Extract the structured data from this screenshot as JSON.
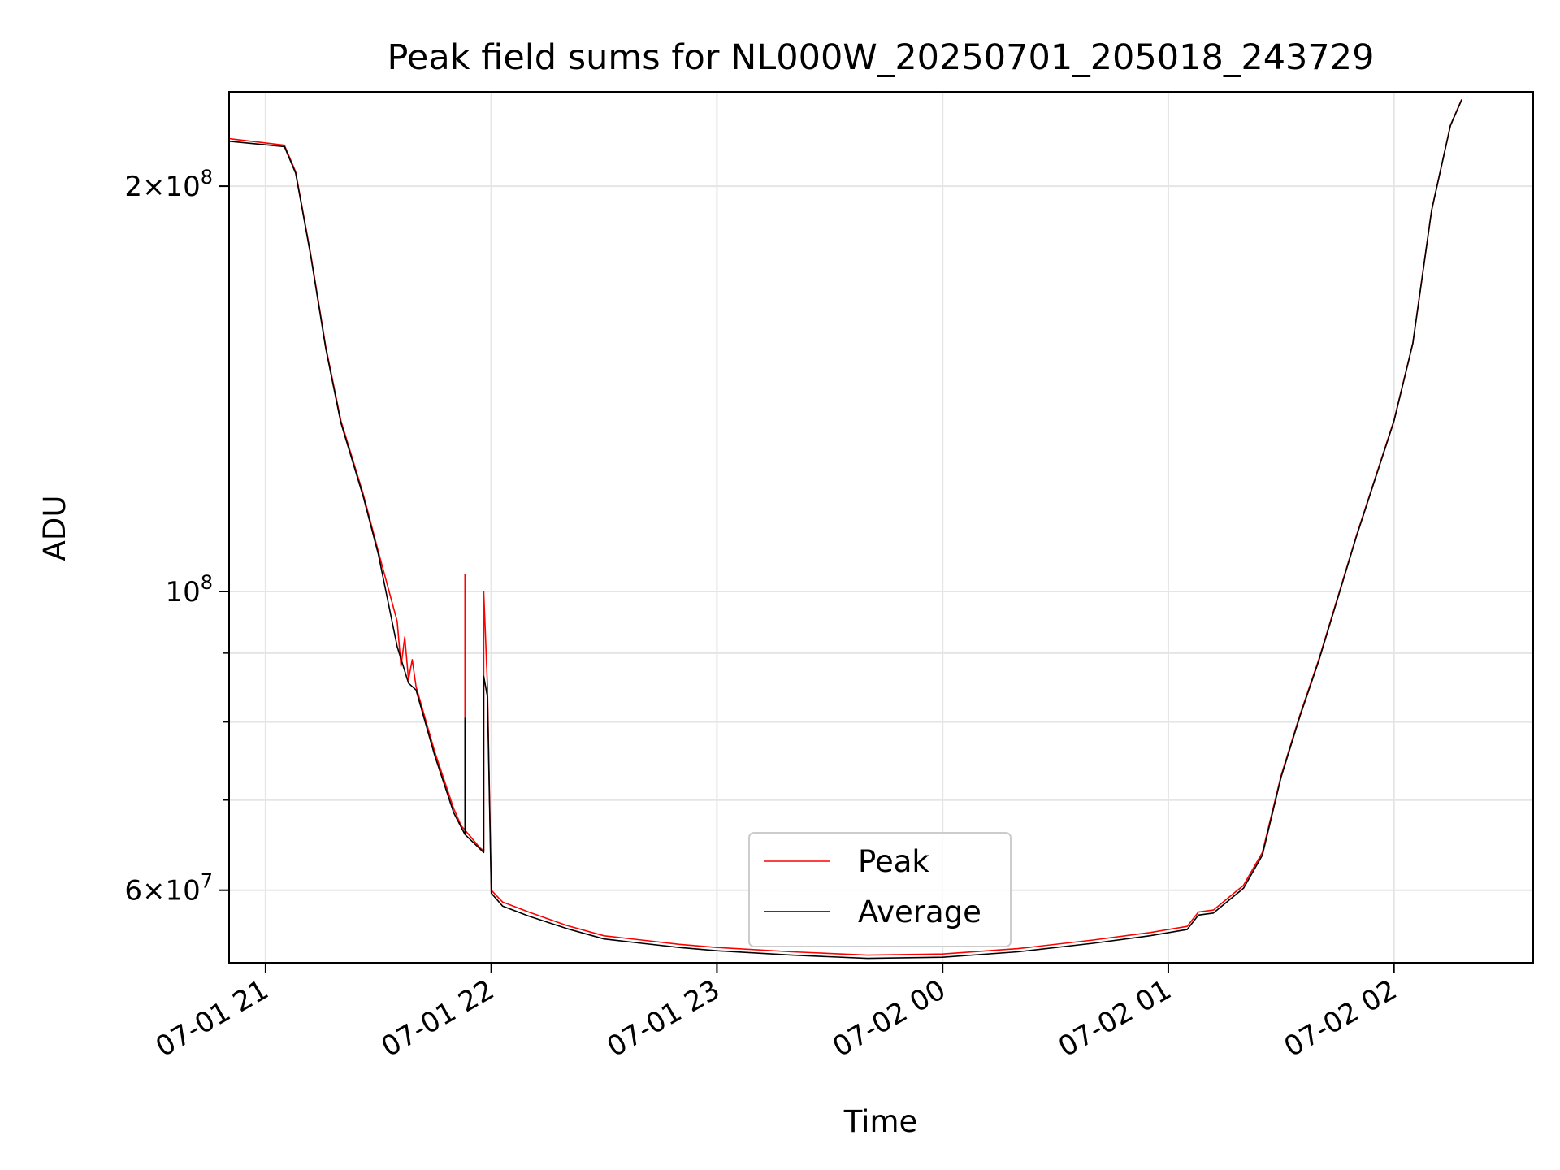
{
  "chart_data": {
    "type": "line",
    "title": "Peak field sums for NL000W_20250701_205018_243729",
    "xlabel": "Time",
    "ylabel": "ADU",
    "x_scale": "time",
    "y_scale": "log",
    "xlim": [
      "2025-07-01 20:50:18",
      "2025-07-02 02:37:00"
    ],
    "ylim": [
      53000000,
      235000000
    ],
    "x_ticks": [
      {
        "value": "2025-07-01 21:00",
        "label": "07-01 21"
      },
      {
        "value": "2025-07-01 22:00",
        "label": "07-01 22"
      },
      {
        "value": "2025-07-01 23:00",
        "label": "07-01 23"
      },
      {
        "value": "2025-07-02 00:00",
        "label": "07-02 00"
      },
      {
        "value": "2025-07-02 01:00",
        "label": "07-02 01"
      },
      {
        "value": "2025-07-02 02:00",
        "label": "07-02 02"
      }
    ],
    "y_ticks": [
      {
        "value": 60000000,
        "label_mant": "6",
        "label_exp": "7"
      },
      {
        "value": 100000000,
        "label_mant": "",
        "label_exp": "8"
      },
      {
        "value": 200000000,
        "label_mant": "2",
        "label_exp": "8"
      }
    ],
    "y_minor_ticks": [
      70000000,
      80000000,
      90000000
    ],
    "grid": true,
    "legend": {
      "position": "lower-center"
    },
    "series": [
      {
        "name": "Peak",
        "color": "#ff0000",
        "points": [
          [
            "2025-07-01 20:50",
            217000000
          ],
          [
            "2025-07-01 21:05",
            214500000
          ],
          [
            "2025-07-01 21:08",
            205000000
          ],
          [
            "2025-07-01 21:12",
            178000000
          ],
          [
            "2025-07-01 21:16",
            152000000
          ],
          [
            "2025-07-01 21:20",
            134000000
          ],
          [
            "2025-07-01 21:26",
            118000000
          ],
          [
            "2025-07-01 21:30",
            107000000
          ],
          [
            "2025-07-01 21:35",
            95000000
          ],
          [
            "2025-07-01 21:36",
            88000000
          ],
          [
            "2025-07-01 21:37",
            92500000
          ],
          [
            "2025-07-01 21:38",
            86000000
          ],
          [
            "2025-07-01 21:39",
            89000000
          ],
          [
            "2025-07-01 21:40",
            85000000
          ],
          [
            "2025-07-01 21:45",
            76000000
          ],
          [
            "2025-07-01 21:50",
            69000000
          ],
          [
            "2025-07-01 21:52",
            67000000
          ],
          [
            "2025-07-01 21:53",
            66500000
          ],
          [
            "2025-07-01 21:53",
            103000000
          ],
          [
            "2025-07-01 21:53",
            66500000
          ],
          [
            "2025-07-01 21:57",
            64500000
          ],
          [
            "2025-07-01 21:58",
            64200000
          ],
          [
            "2025-07-01 21:58",
            100000000
          ],
          [
            "2025-07-01 21:59",
            85000000
          ],
          [
            "2025-07-01 22:00",
            60000000
          ],
          [
            "2025-07-01 22:03",
            58800000
          ],
          [
            "2025-07-01 22:10",
            57800000
          ],
          [
            "2025-07-01 22:20",
            56500000
          ],
          [
            "2025-07-01 22:30",
            55500000
          ],
          [
            "2025-07-01 22:40",
            55100000
          ],
          [
            "2025-07-01 22:50",
            54700000
          ],
          [
            "2025-07-01 23:00",
            54400000
          ],
          [
            "2025-07-01 23:20",
            54000000
          ],
          [
            "2025-07-01 23:40",
            53700000
          ],
          [
            "2025-07-02 00:00",
            53800000
          ],
          [
            "2025-07-02 00:20",
            54300000
          ],
          [
            "2025-07-02 00:40",
            55100000
          ],
          [
            "2025-07-02 00:55",
            55800000
          ],
          [
            "2025-07-02 01:05",
            56400000
          ],
          [
            "2025-07-02 01:08",
            57800000
          ],
          [
            "2025-07-02 01:12",
            58000000
          ],
          [
            "2025-07-02 01:20",
            60500000
          ],
          [
            "2025-07-02 01:25",
            64000000
          ],
          [
            "2025-07-02 01:30",
            73000000
          ],
          [
            "2025-07-02 01:35",
            81000000
          ],
          [
            "2025-07-02 01:40",
            89000000
          ],
          [
            "2025-07-02 01:50",
            110000000
          ],
          [
            "2025-07-02 02:00",
            134000000
          ],
          [
            "2025-07-02 02:05",
            153000000
          ],
          [
            "2025-07-02 02:10",
            192000000
          ],
          [
            "2025-07-02 02:15",
            222000000
          ],
          [
            "2025-07-02 02:18",
            232000000
          ]
        ]
      },
      {
        "name": "Average",
        "color": "#000000",
        "points": [
          [
            "2025-07-01 20:50",
            216000000
          ],
          [
            "2025-07-01 21:05",
            214000000
          ],
          [
            "2025-07-01 21:08",
            204500000
          ],
          [
            "2025-07-01 21:12",
            177500000
          ],
          [
            "2025-07-01 21:16",
            151500000
          ],
          [
            "2025-07-01 21:20",
            133500000
          ],
          [
            "2025-07-01 21:26",
            117500000
          ],
          [
            "2025-07-01 21:30",
            106500000
          ],
          [
            "2025-07-01 21:35",
            91000000
          ],
          [
            "2025-07-01 21:38",
            85500000
          ],
          [
            "2025-07-01 21:40",
            84500000
          ],
          [
            "2025-07-01 21:45",
            75500000
          ],
          [
            "2025-07-01 21:50",
            68500000
          ],
          [
            "2025-07-01 21:53",
            66000000
          ],
          [
            "2025-07-01 21:53",
            80500000
          ],
          [
            "2025-07-01 21:53",
            66000000
          ],
          [
            "2025-07-01 21:58",
            64000000
          ],
          [
            "2025-07-01 21:58",
            86500000
          ],
          [
            "2025-07-01 21:59",
            83500000
          ],
          [
            "2025-07-01 22:00",
            59700000
          ],
          [
            "2025-07-01 22:03",
            58400000
          ],
          [
            "2025-07-01 22:10",
            57400000
          ],
          [
            "2025-07-01 22:20",
            56200000
          ],
          [
            "2025-07-01 22:30",
            55200000
          ],
          [
            "2025-07-01 22:40",
            54800000
          ],
          [
            "2025-07-01 22:50",
            54400000
          ],
          [
            "2025-07-01 23:00",
            54100000
          ],
          [
            "2025-07-01 23:20",
            53700000
          ],
          [
            "2025-07-01 23:40",
            53400000
          ],
          [
            "2025-07-02 00:00",
            53500000
          ],
          [
            "2025-07-02 00:20",
            54000000
          ],
          [
            "2025-07-02 00:40",
            54800000
          ],
          [
            "2025-07-02 00:55",
            55500000
          ],
          [
            "2025-07-02 01:05",
            56100000
          ],
          [
            "2025-07-02 01:08",
            57500000
          ],
          [
            "2025-07-02 01:12",
            57700000
          ],
          [
            "2025-07-02 01:20",
            60200000
          ],
          [
            "2025-07-02 01:25",
            63700000
          ],
          [
            "2025-07-02 01:30",
            72800000
          ],
          [
            "2025-07-02 01:35",
            80800000
          ],
          [
            "2025-07-02 01:40",
            88800000
          ],
          [
            "2025-07-02 01:50",
            109800000
          ],
          [
            "2025-07-02 02:00",
            133800000
          ],
          [
            "2025-07-02 02:05",
            152800000
          ],
          [
            "2025-07-02 02:10",
            191800000
          ],
          [
            "2025-07-02 02:15",
            221800000
          ],
          [
            "2025-07-02 02:18",
            231800000
          ]
        ]
      }
    ]
  }
}
